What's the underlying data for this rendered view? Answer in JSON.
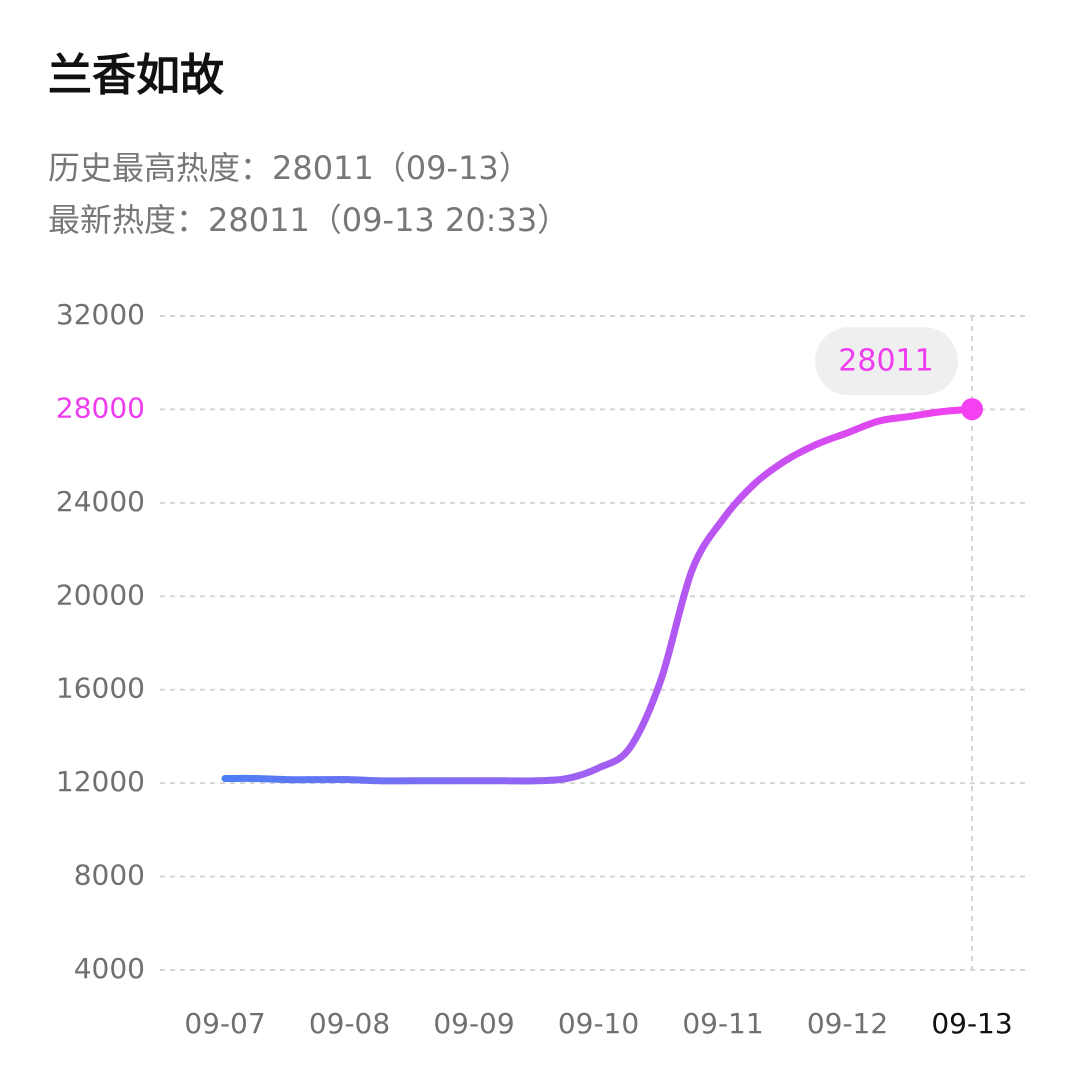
{
  "chart_data": {
    "type": "line",
    "title": "兰香如故",
    "subtitle": [
      "历史最高热度：28011（09-13）",
      "最新热度：28011（09-13 20:33）"
    ],
    "categories": [
      "09-07",
      null,
      null,
      null,
      "09-08",
      null,
      null,
      null,
      "09-09",
      null,
      null,
      null,
      "09-10",
      null,
      null,
      null,
      "09-11",
      null,
      null,
      null,
      "09-12",
      null,
      null,
      null,
      "09-13"
    ],
    "values": [
      12200,
      12200,
      12150,
      12150,
      12150,
      12100,
      12100,
      12100,
      12100,
      12100,
      12100,
      12200,
      12650,
      13500,
      16400,
      21100,
      23300,
      24800,
      25800,
      26500,
      27000,
      27500,
      27700,
      27900,
      28011
    ],
    "colors": [
      "#4d7ef5",
      "#f440f0"
    ],
    "highlight_color": "#f03cf0",
    "ylim": [
      4000,
      32000
    ],
    "yticks": [
      4000,
      8000,
      12000,
      16000,
      20000,
      24000,
      28000,
      32000
    ],
    "grid": true
  }
}
